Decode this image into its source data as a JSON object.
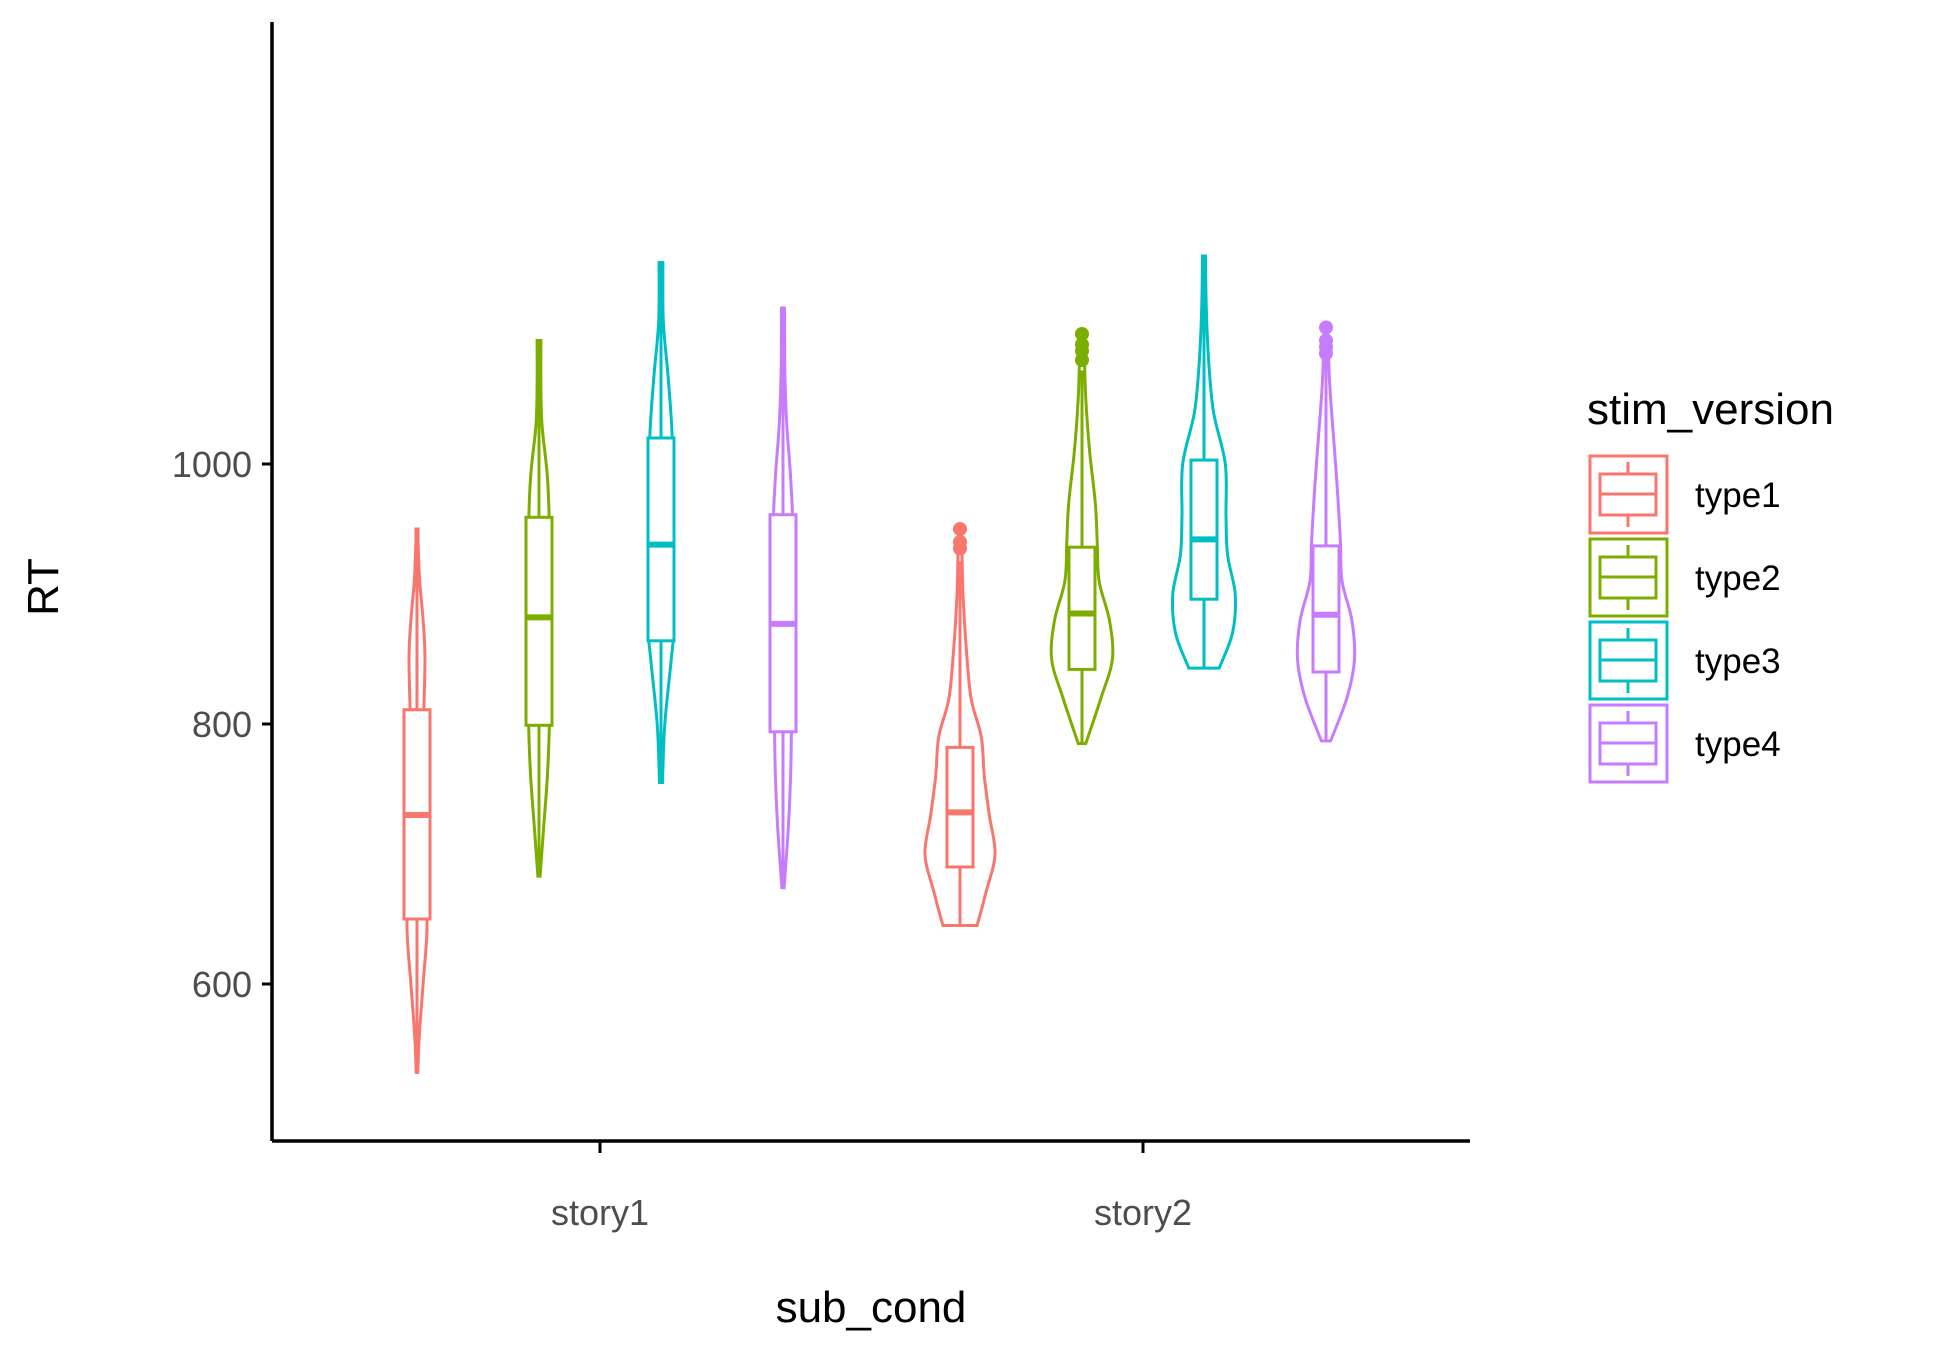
{
  "chart_data": {
    "type": "violin",
    "xlabel": "sub_cond",
    "ylabel": "RT",
    "categories": [
      "story1",
      "story2"
    ],
    "ylim": [
      503,
      1180
    ],
    "yticks": [
      600,
      800,
      1000
    ],
    "legend": {
      "title": "stim_version",
      "position": "right"
    },
    "grid": false,
    "series": [
      {
        "name": "type1",
        "color": "#F8766D",
        "groups": [
          {
            "min": 532,
            "q1": 650,
            "median": 730,
            "q3": 811,
            "max": 950,
            "outliers": [],
            "density": [
              [
                532,
                0.02
              ],
              [
                560,
                0.06
              ],
              [
                600,
                0.16
              ],
              [
                640,
                0.26
              ],
              [
                680,
                0.24
              ],
              [
                720,
                0.16
              ],
              [
                760,
                0.14
              ],
              [
                800,
                0.17
              ],
              [
                850,
                0.21
              ],
              [
                880,
                0.16
              ],
              [
                910,
                0.07
              ],
              [
                940,
                0.03
              ],
              [
                950,
                0.03
              ]
            ]
          },
          {
            "min": 645,
            "q1": 690,
            "median": 732,
            "q3": 782,
            "max": 925,
            "outliers": [
              935,
              940,
              950
            ],
            "density": [
              [
                645,
                0.45
              ],
              [
                670,
                0.68
              ],
              [
                700,
                0.92
              ],
              [
                730,
                0.77
              ],
              [
                760,
                0.64
              ],
              [
                790,
                0.56
              ],
              [
                820,
                0.29
              ],
              [
                860,
                0.16
              ],
              [
                900,
                0.08
              ],
              [
                935,
                0.05
              ],
              [
                950,
                0.03
              ]
            ]
          }
        ]
      },
      {
        "name": "type2",
        "color": "#7CAE00",
        "groups": [
          {
            "min": 683,
            "q1": 799,
            "median": 882,
            "q3": 959,
            "max": 1095,
            "outliers": [],
            "density": [
              [
                683,
                0.03
              ],
              [
                720,
                0.12
              ],
              [
                760,
                0.22
              ],
              [
                800,
                0.27
              ],
              [
                850,
                0.24
              ],
              [
                900,
                0.24
              ],
              [
                950,
                0.27
              ],
              [
                990,
                0.22
              ],
              [
                1030,
                0.08
              ],
              [
                1060,
                0.05
              ],
              [
                1095,
                0.05
              ]
            ]
          },
          {
            "min": 785,
            "q1": 842,
            "median": 885,
            "q3": 936,
            "max": 1072,
            "outliers": [
              1080,
              1087,
              1092,
              1100
            ],
            "density": [
              [
                785,
                0.1
              ],
              [
                820,
                0.5
              ],
              [
                850,
                0.8
              ],
              [
                880,
                0.72
              ],
              [
                910,
                0.45
              ],
              [
                940,
                0.4
              ],
              [
                970,
                0.35
              ],
              [
                1010,
                0.2
              ],
              [
                1050,
                0.1
              ],
              [
                1085,
                0.06
              ],
              [
                1100,
                0.04
              ]
            ]
          }
        ]
      },
      {
        "name": "type3",
        "color": "#00BFC4",
        "groups": [
          {
            "min": 755,
            "q1": 864,
            "median": 938,
            "q3": 1020,
            "max": 1155,
            "outliers": [],
            "density": [
              [
                755,
                0.04
              ],
              [
                800,
                0.1
              ],
              [
                850,
                0.27
              ],
              [
                870,
                0.32
              ],
              [
                900,
                0.2
              ],
              [
                950,
                0.2
              ],
              [
                1000,
                0.3
              ],
              [
                1030,
                0.28
              ],
              [
                1070,
                0.18
              ],
              [
                1110,
                0.06
              ],
              [
                1155,
                0.05
              ]
            ]
          },
          {
            "min": 843,
            "q1": 896,
            "median": 942,
            "q3": 1003,
            "max": 1160,
            "outliers": [],
            "density": [
              [
                843,
                0.4
              ],
              [
                870,
                0.75
              ],
              [
                900,
                0.82
              ],
              [
                930,
                0.62
              ],
              [
                960,
                0.58
              ],
              [
                1000,
                0.56
              ],
              [
                1040,
                0.25
              ],
              [
                1080,
                0.12
              ],
              [
                1120,
                0.06
              ],
              [
                1160,
                0.04
              ]
            ]
          }
        ]
      },
      {
        "name": "type4",
        "color": "#C77CFF",
        "groups": [
          {
            "min": 674,
            "q1": 794,
            "median": 877,
            "q3": 961,
            "max": 1120,
            "outliers": [],
            "density": [
              [
                674,
                0.03
              ],
              [
                720,
                0.14
              ],
              [
                760,
                0.2
              ],
              [
                800,
                0.22
              ],
              [
                850,
                0.2
              ],
              [
                900,
                0.24
              ],
              [
                950,
                0.26
              ],
              [
                990,
                0.2
              ],
              [
                1030,
                0.1
              ],
              [
                1070,
                0.05
              ],
              [
                1120,
                0.04
              ]
            ]
          },
          {
            "min": 787,
            "q1": 840,
            "median": 884,
            "q3": 937,
            "max": 1080,
            "outliers": [
              1085,
              1090,
              1095,
              1105
            ],
            "density": [
              [
                787,
                0.12
              ],
              [
                820,
                0.55
              ],
              [
                850,
                0.75
              ],
              [
                880,
                0.68
              ],
              [
                910,
                0.42
              ],
              [
                940,
                0.38
              ],
              [
                980,
                0.3
              ],
              [
                1020,
                0.2
              ],
              [
                1060,
                0.1
              ],
              [
                1090,
                0.06
              ],
              [
                1105,
                0.04
              ]
            ]
          }
        ]
      }
    ]
  }
}
